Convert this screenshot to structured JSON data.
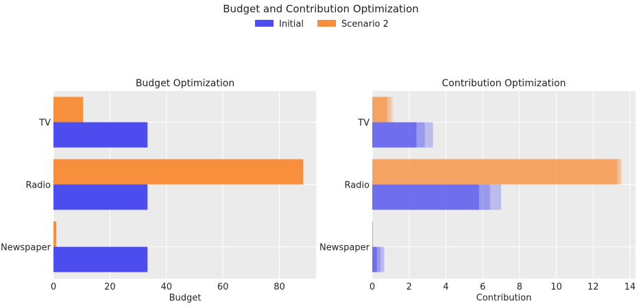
{
  "figure": {
    "title": "Budget and Contribution Optimization",
    "legend": {
      "placement": "top-center",
      "entries": [
        {
          "label": "Initial",
          "color": "#4c4cef"
        },
        {
          "label": "Scenario 2",
          "color": "#f78f3c"
        }
      ]
    }
  },
  "colors": {
    "initial": "#4c4cef",
    "scenario": "#f78f3c",
    "plot_background": "#ebebeb",
    "grid": "#ffffff"
  },
  "chart_data": [
    {
      "type": "bar",
      "orientation": "horizontal",
      "title": "Budget Optimization",
      "xlabel": "Budget",
      "ylabel": "",
      "xlim": [
        0,
        93
      ],
      "xticks": [
        0,
        20,
        40,
        60,
        80
      ],
      "categories": [
        "TV",
        "Radio",
        "Newspaper"
      ],
      "series": [
        {
          "name": "Scenario 2",
          "values": [
            10.5,
            88.5,
            1.0
          ]
        },
        {
          "name": "Initial",
          "values": [
            33.3,
            33.3,
            33.3
          ]
        }
      ],
      "grid": true
    },
    {
      "type": "bar",
      "orientation": "horizontal",
      "title": "Contribution Optimization",
      "xlabel": "Contribution",
      "ylabel": "",
      "xlim": [
        0,
        14.3
      ],
      "xticks": [
        0,
        2,
        4,
        6,
        8,
        10,
        12,
        14
      ],
      "categories": [
        "TV",
        "Radio",
        "Newspaper"
      ],
      "series": [
        {
          "name": "Scenario 2",
          "values": [
            0.8,
            13.3,
            0.03
          ],
          "upper": [
            1.1,
            13.55,
            0.05
          ],
          "middle": [
            0.95,
            13.45,
            0.04
          ]
        },
        {
          "name": "Initial",
          "values": [
            2.4,
            5.8,
            0.25
          ],
          "upper": [
            3.3,
            7.0,
            0.65
          ],
          "middle": [
            2.85,
            6.4,
            0.45
          ]
        }
      ],
      "grid": true
    }
  ]
}
